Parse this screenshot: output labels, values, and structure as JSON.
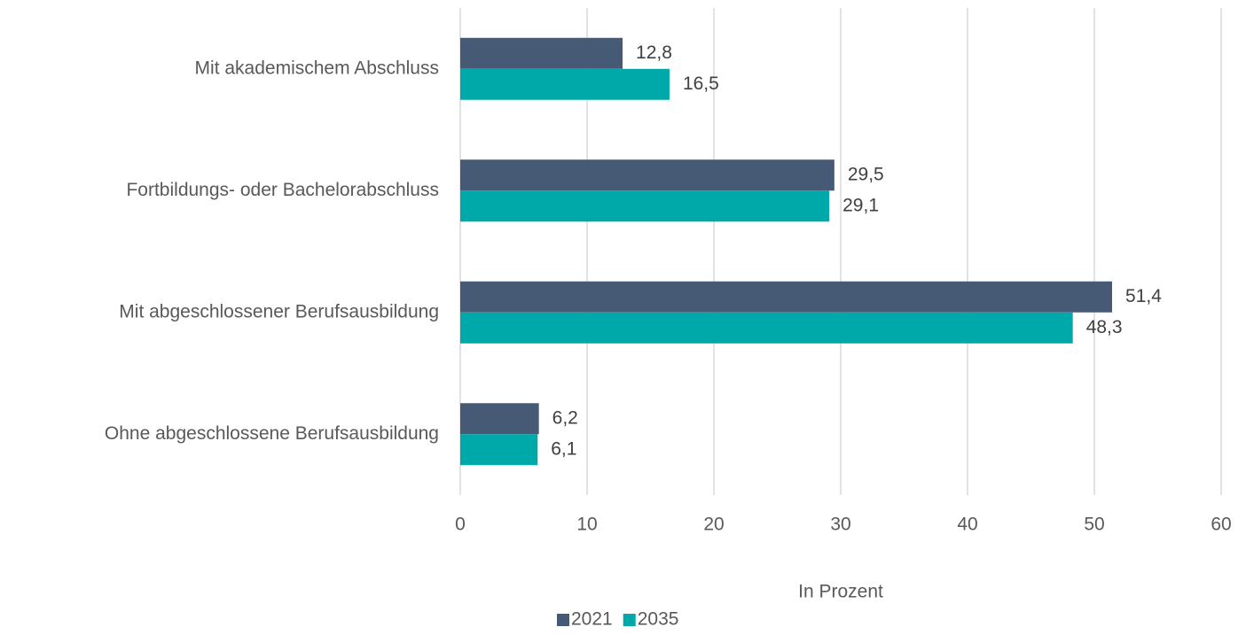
{
  "chart_data": {
    "type": "hbar",
    "categories": [
      "Mit akademischem Abschluss",
      "Fortbildungs- oder Bachelorabschluss",
      "Mit abgeschlossener Berufsausbildung",
      "Ohne abgeschlossene Berufsausbildung"
    ],
    "series": [
      {
        "name": "2021",
        "color": "#465a75",
        "values": [
          12.8,
          29.5,
          51.4,
          6.2
        ],
        "value_labels": [
          "12,8",
          "29,5",
          "51,4",
          "6,2"
        ]
      },
      {
        "name": "2035",
        "color": "#00a9a9",
        "values": [
          16.5,
          29.1,
          48.3,
          6.1
        ],
        "value_labels": [
          "16,5",
          "29,1",
          "48,3",
          "6,1"
        ]
      }
    ],
    "xlabel": "In Prozent",
    "xlim": [
      0,
      60
    ],
    "xticks": [
      0,
      10,
      20,
      30,
      40,
      50,
      60
    ],
    "grid": true,
    "legend": "bottom"
  }
}
